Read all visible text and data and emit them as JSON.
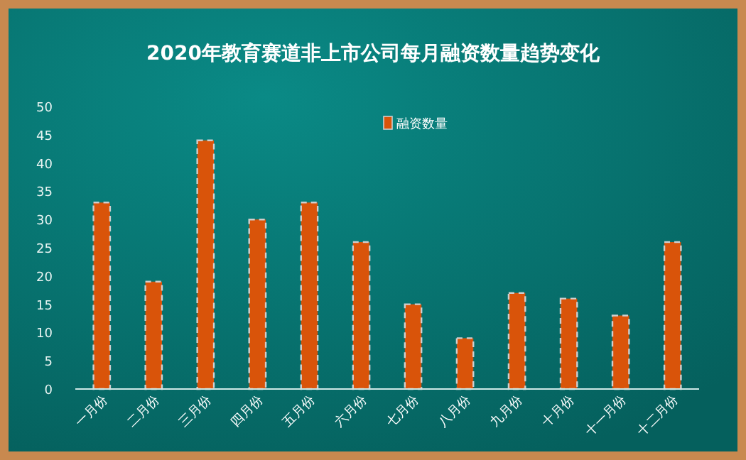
{
  "chart_data": {
    "type": "bar",
    "title": "2020年教育赛道非上市公司每月融资数量趋势变化",
    "categories": [
      "一月份",
      "二月份",
      "三月份",
      "四月份",
      "五月份",
      "六月份",
      "七月份",
      "八月份",
      "九月份",
      "十月份",
      "十一月份",
      "十二月份"
    ],
    "series": [
      {
        "name": "融资数量",
        "color": "#d9540a",
        "values": [
          33,
          19,
          44,
          30,
          33,
          26,
          15,
          9,
          17,
          16,
          13,
          26
        ]
      }
    ],
    "ylim": [
      0,
      50
    ],
    "yticks": [
      0,
      5,
      10,
      15,
      20,
      25,
      30,
      35,
      40,
      45,
      50
    ],
    "grid": false,
    "legend": "top"
  }
}
